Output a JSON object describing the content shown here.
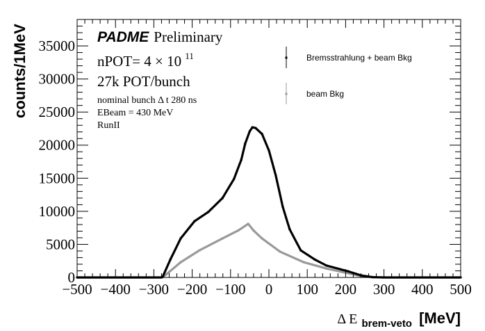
{
  "chart_data": {
    "type": "scatter",
    "title": "",
    "xlabel": "Δ E",
    "xlabel_subscript": "brem-veto",
    "xlabel_unit": "[MeV]",
    "ylabel": "counts/1MeV",
    "xlim": [
      -500,
      500
    ],
    "ylim": [
      0,
      39000
    ],
    "grid": false,
    "x_ticks": [
      -500,
      -400,
      -300,
      -200,
      -100,
      0,
      100,
      200,
      300,
      400,
      500
    ],
    "x_tick_labels": [
      "−500",
      "−400",
      "−300",
      "−200",
      "−100",
      "0",
      "100",
      "200",
      "300",
      "400",
      "500"
    ],
    "y_ticks": [
      0,
      5000,
      10000,
      15000,
      20000,
      25000,
      30000,
      35000
    ],
    "y_tick_labels": [
      "0",
      "5000",
      "10000",
      "15000",
      "20000",
      "25000",
      "30000",
      "35000"
    ],
    "legend_position": "top-right",
    "annotations": {
      "experiment": "PADME",
      "status": "Preliminary",
      "npot_prefix": "nPOT= 4 × 10",
      "npot_exponent": "11",
      "pot_per_bunch": "27k POT/bunch",
      "bunch_length": "nominal bunch Δ t 280 ns",
      "ebeam": "EBeam = 430 MeV",
      "run": "RunII"
    },
    "series": [
      {
        "name": "Bremsstrahlung + beam Bkg",
        "color": "#000000",
        "x": [
          -500,
          -290,
          -280,
          -277,
          -257,
          -230,
          -194,
          -158,
          -121,
          -91,
          -72,
          -62,
          -50,
          -43,
          -35,
          -18,
          0,
          18,
          36,
          54,
          83,
          120,
          150,
          205,
          241,
          270,
          300,
          500
        ],
        "y": [
          0,
          0,
          0,
          100,
          2700,
          5900,
          8500,
          9900,
          12000,
          14900,
          17800,
          20200,
          22100,
          22700,
          22600,
          21700,
          19200,
          15400,
          10700,
          7300,
          4100,
          2700,
          1800,
          950,
          300,
          50,
          0,
          0
        ]
      },
      {
        "name": "beam Bkg",
        "color": "#999999",
        "x": [
          -500,
          -290,
          -280,
          -275,
          -230,
          -181,
          -121,
          -80,
          -54,
          -40,
          -18,
          29,
          91,
          150,
          205,
          241,
          270,
          300,
          500
        ],
        "y": [
          0,
          0,
          0,
          100,
          2300,
          4100,
          5900,
          7100,
          8100,
          7100,
          5900,
          3900,
          2300,
          1350,
          650,
          200,
          30,
          0,
          0
        ]
      }
    ]
  }
}
